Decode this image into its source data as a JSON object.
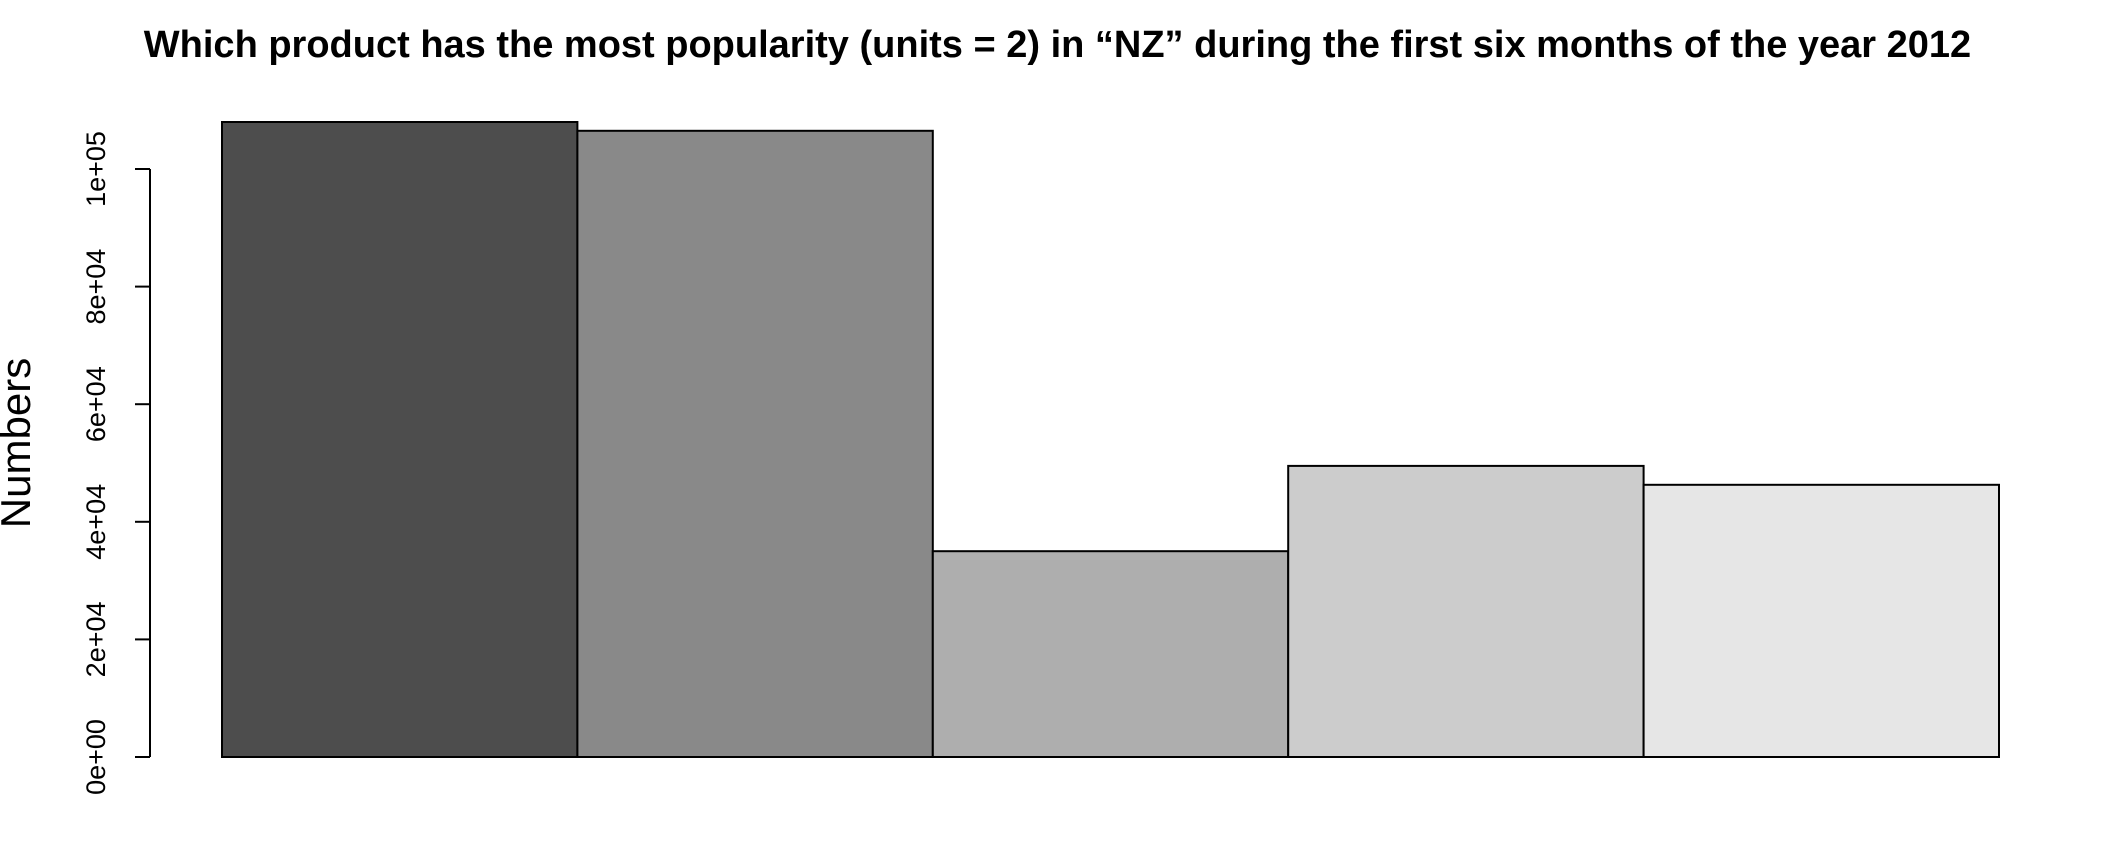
{
  "chart_data": {
    "type": "bar",
    "title": "Which product has the most popularity (units = 2) in “NZ” during the first six months of the year 2012",
    "xlabel": "",
    "ylabel": "Numbers",
    "categories": [
      "",
      "",
      "",
      "",
      ""
    ],
    "values": [
      108000,
      106500,
      35000,
      49500,
      46300
    ],
    "colors": [
      "#4d4d4d",
      "#898989",
      "#aeaeae",
      "#cccccc",
      "#e6e6e6"
    ],
    "ylim": [
      0,
      108000
    ],
    "yticks": [
      0,
      20000,
      40000,
      60000,
      80000,
      100000
    ],
    "ytick_labels": [
      "0e+00",
      "2e+04",
      "4e+04",
      "6e+04",
      "8e+04",
      "1e+05"
    ],
    "grid": false,
    "legend": "none"
  }
}
